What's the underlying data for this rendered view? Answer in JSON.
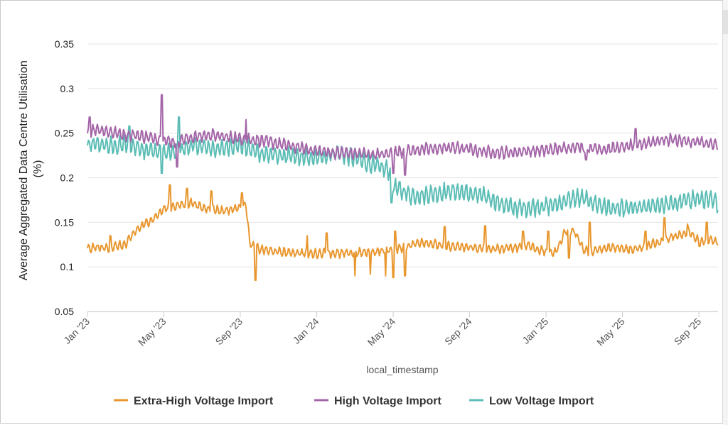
{
  "chart_data": {
    "type": "line",
    "title": "",
    "xlabel": "local_timestamp",
    "ylabel_line1": "Average Aggregated Data Centre Utilisation",
    "ylabel_line2": "(%)",
    "ylim": [
      0.05,
      0.35
    ],
    "yticks": [
      0.05,
      0.1,
      0.15,
      0.2,
      0.25,
      0.3,
      0.35
    ],
    "ytick_labels": [
      "0.05",
      "0.1",
      "0.15",
      "0.2",
      "0.25",
      "0.3",
      "0.35"
    ],
    "x_unit": "months since Jan 2023",
    "xlim": [
      0,
      33
    ],
    "xticks": [
      0,
      4,
      8,
      12,
      16,
      20,
      24,
      28,
      32
    ],
    "xtick_labels": [
      "Jan '23",
      "May '23",
      "Sep '23",
      "Jan '24",
      "May '24",
      "Sep '24",
      "Jan '25",
      "May '25",
      "Sep '25"
    ],
    "grid": true,
    "legend_position": "bottom",
    "series": [
      {
        "name": "Extra-High Voltage Import",
        "color": "#E8972F",
        "noise": 0.006,
        "x": [
          0,
          0.5,
          1,
          1.5,
          2,
          2.5,
          3,
          3.5,
          4,
          4.5,
          5,
          5.5,
          6,
          6.5,
          7,
          7.5,
          8,
          8.3,
          8.5,
          9,
          9.5,
          10,
          10.5,
          11,
          11.5,
          12,
          12.5,
          13,
          13.5,
          14,
          14.5,
          15,
          15.5,
          16,
          16.5,
          17,
          17.5,
          18,
          18.5,
          19,
          19.5,
          20,
          20.5,
          21,
          21.5,
          22,
          22.5,
          23,
          23.5,
          24,
          24.5,
          25,
          25.5,
          26,
          26.5,
          27,
          27.5,
          28,
          28.5,
          29,
          29.5,
          30,
          30.5,
          31,
          31.5,
          32,
          32.5,
          33
        ],
        "y": [
          0.12,
          0.122,
          0.121,
          0.123,
          0.125,
          0.14,
          0.148,
          0.155,
          0.165,
          0.168,
          0.17,
          0.172,
          0.166,
          0.165,
          0.163,
          0.164,
          0.167,
          0.17,
          0.125,
          0.12,
          0.118,
          0.117,
          0.116,
          0.116,
          0.115,
          0.115,
          0.116,
          0.115,
          0.115,
          0.116,
          0.116,
          0.117,
          0.118,
          0.12,
          0.122,
          0.125,
          0.128,
          0.126,
          0.124,
          0.123,
          0.122,
          0.122,
          0.121,
          0.12,
          0.12,
          0.121,
          0.122,
          0.125,
          0.12,
          0.117,
          0.116,
          0.14,
          0.14,
          0.118,
          0.118,
          0.12,
          0.122,
          0.121,
          0.12,
          0.122,
          0.125,
          0.128,
          0.132,
          0.135,
          0.14,
          0.128,
          0.13,
          0.128
        ],
        "events": [
          [
            1.2,
            0.135
          ],
          [
            4.3,
            0.192
          ],
          [
            5.2,
            0.188
          ],
          [
            6.5,
            0.185
          ],
          [
            8.1,
            0.183
          ],
          [
            8.8,
            0.085
          ],
          [
            11.5,
            0.135
          ],
          [
            12.5,
            0.138
          ],
          [
            14.0,
            0.09
          ],
          [
            14.8,
            0.092
          ],
          [
            15.6,
            0.09
          ],
          [
            16.0,
            0.088
          ],
          [
            16.1,
            0.14
          ],
          [
            16.6,
            0.09
          ],
          [
            18.7,
            0.145
          ],
          [
            20.8,
            0.146
          ],
          [
            22.8,
            0.14
          ],
          [
            24.1,
            0.14
          ],
          [
            25.2,
            0.11
          ],
          [
            26.3,
            0.15
          ],
          [
            29.2,
            0.14
          ],
          [
            30.2,
            0.155
          ],
          [
            30.6,
            0.135
          ],
          [
            31.4,
            0.148
          ],
          [
            32.4,
            0.15
          ]
        ]
      },
      {
        "name": "High Voltage Import",
        "color": "#A466A8",
        "noise": 0.008,
        "x": [
          0,
          0.5,
          1,
          1.5,
          2,
          2.5,
          3,
          3.5,
          4,
          4.5,
          5,
          5.5,
          6,
          6.5,
          7,
          7.5,
          8,
          8.5,
          9,
          9.5,
          10,
          10.5,
          11,
          11.5,
          12,
          12.5,
          13,
          13.5,
          14,
          14.5,
          15,
          15.5,
          16,
          16.5,
          17,
          17.5,
          18,
          18.5,
          19,
          19.5,
          20,
          20.5,
          21,
          21.5,
          22,
          22.5,
          23,
          23.5,
          24,
          24.5,
          25,
          25.5,
          26,
          26.5,
          27,
          27.5,
          28,
          28.5,
          29,
          29.5,
          30,
          30.5,
          31,
          31.5,
          32,
          32.5,
          33
        ],
        "y": [
          0.25,
          0.255,
          0.252,
          0.25,
          0.248,
          0.248,
          0.246,
          0.244,
          0.242,
          0.24,
          0.243,
          0.245,
          0.247,
          0.248,
          0.246,
          0.245,
          0.244,
          0.243,
          0.242,
          0.24,
          0.238,
          0.236,
          0.234,
          0.232,
          0.23,
          0.229,
          0.228,
          0.228,
          0.227,
          0.227,
          0.226,
          0.226,
          0.228,
          0.23,
          0.23,
          0.232,
          0.232,
          0.233,
          0.234,
          0.233,
          0.232,
          0.23,
          0.229,
          0.228,
          0.228,
          0.229,
          0.23,
          0.23,
          0.231,
          0.232,
          0.233,
          0.235,
          0.234,
          0.233,
          0.232,
          0.233,
          0.234,
          0.236,
          0.238,
          0.24,
          0.242,
          0.243,
          0.242,
          0.24,
          0.24,
          0.238,
          0.236
        ],
        "events": [
          [
            0.1,
            0.268
          ],
          [
            3.9,
            0.293
          ],
          [
            4.7,
            0.212
          ],
          [
            8.3,
            0.265
          ],
          [
            16.0,
            0.205
          ],
          [
            16.6,
            0.203
          ],
          [
            26.1,
            0.22
          ],
          [
            28.7,
            0.255
          ]
        ]
      },
      {
        "name": "Low Voltage Import",
        "color": "#5BBDB5",
        "noise": 0.012,
        "x": [
          0,
          0.5,
          1,
          1.5,
          2,
          2.5,
          3,
          3.5,
          4,
          4.5,
          5,
          5.5,
          6,
          6.5,
          7,
          7.5,
          8,
          8.5,
          9,
          9.5,
          10,
          10.5,
          11,
          11.5,
          12,
          12.5,
          13,
          13.5,
          14,
          14.5,
          15,
          15.5,
          15.9,
          16.0,
          16.5,
          17,
          17.5,
          18,
          18.5,
          19,
          19.5,
          20,
          20.5,
          21,
          21.5,
          22,
          22.5,
          23,
          23.5,
          24,
          24.5,
          25,
          25.5,
          26,
          26.5,
          27,
          27.5,
          28,
          28.5,
          29,
          29.5,
          30,
          30.5,
          31,
          31.5,
          32,
          32.5,
          33
        ],
        "y": [
          0.235,
          0.238,
          0.236,
          0.235,
          0.238,
          0.235,
          0.232,
          0.23,
          0.228,
          0.228,
          0.232,
          0.236,
          0.235,
          0.233,
          0.232,
          0.236,
          0.237,
          0.232,
          0.228,
          0.226,
          0.225,
          0.224,
          0.223,
          0.222,
          0.222,
          0.225,
          0.228,
          0.226,
          0.222,
          0.218,
          0.214,
          0.21,
          0.208,
          0.19,
          0.185,
          0.18,
          0.18,
          0.182,
          0.183,
          0.185,
          0.184,
          0.182,
          0.18,
          0.178,
          0.172,
          0.168,
          0.166,
          0.166,
          0.168,
          0.168,
          0.17,
          0.174,
          0.177,
          0.176,
          0.172,
          0.168,
          0.165,
          0.165,
          0.166,
          0.166,
          0.168,
          0.17,
          0.17,
          0.172,
          0.176,
          0.176,
          0.175,
          0.172
        ],
        "events": [
          [
            2.2,
            0.258
          ],
          [
            3.9,
            0.205
          ],
          [
            4.8,
            0.268
          ],
          [
            15.9,
            0.172
          ]
        ]
      }
    ]
  }
}
